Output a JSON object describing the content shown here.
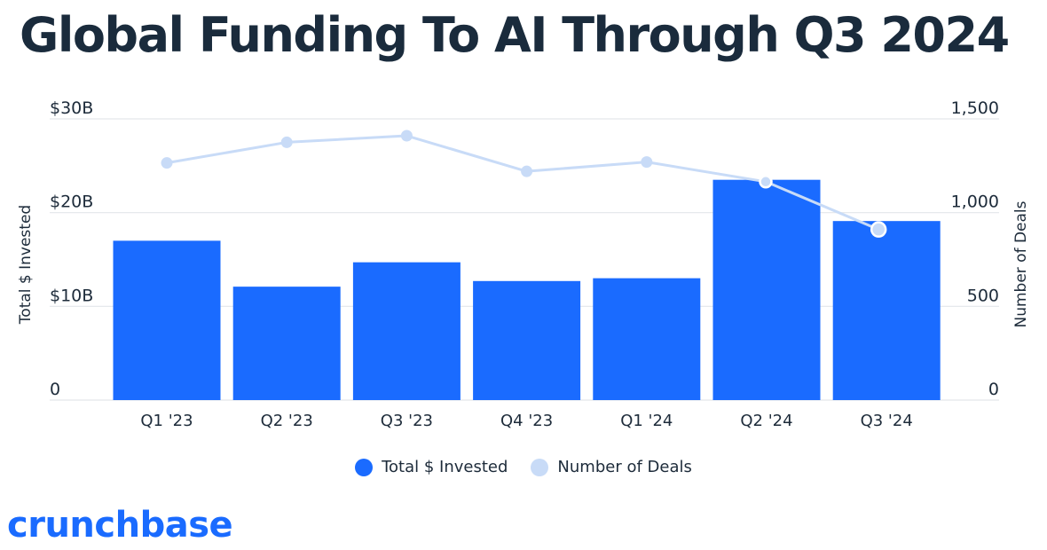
{
  "title": "Global Funding To AI Through Q3 2024",
  "logo_text": "crunchbase",
  "colors": {
    "bar": "#1a6bff",
    "line": "#c8dbf7",
    "title": "#1a2b3c",
    "logo": "#1a6bff",
    "grid": "#e3e6ea"
  },
  "chart_data": {
    "type": "bar",
    "categories": [
      "Q1 '23",
      "Q2 '23",
      "Q3 '23",
      "Q4 '23",
      "Q1 '24",
      "Q2 '24",
      "Q3 '24"
    ],
    "series": [
      {
        "name": "Total $ Invested",
        "kind": "bar",
        "axis": "left",
        "values": [
          17.0,
          12.1,
          14.7,
          12.7,
          13.0,
          23.5,
          19.1
        ]
      },
      {
        "name": "Number of Deals",
        "kind": "line",
        "axis": "right",
        "values": [
          1265,
          1375,
          1410,
          1220,
          1270,
          1165,
          910
        ]
      }
    ],
    "ylabel": "Total $ Invested",
    "y2label": "Number of Deals",
    "ylim": [
      0,
      30
    ],
    "y2lim": [
      0,
      1500
    ],
    "yticks": [
      "0",
      "$10B",
      "$20B",
      "$30B"
    ],
    "y2ticks": [
      "0",
      "500",
      "1,000",
      "1,500"
    ],
    "grid": true,
    "legend": "bottom-center"
  }
}
